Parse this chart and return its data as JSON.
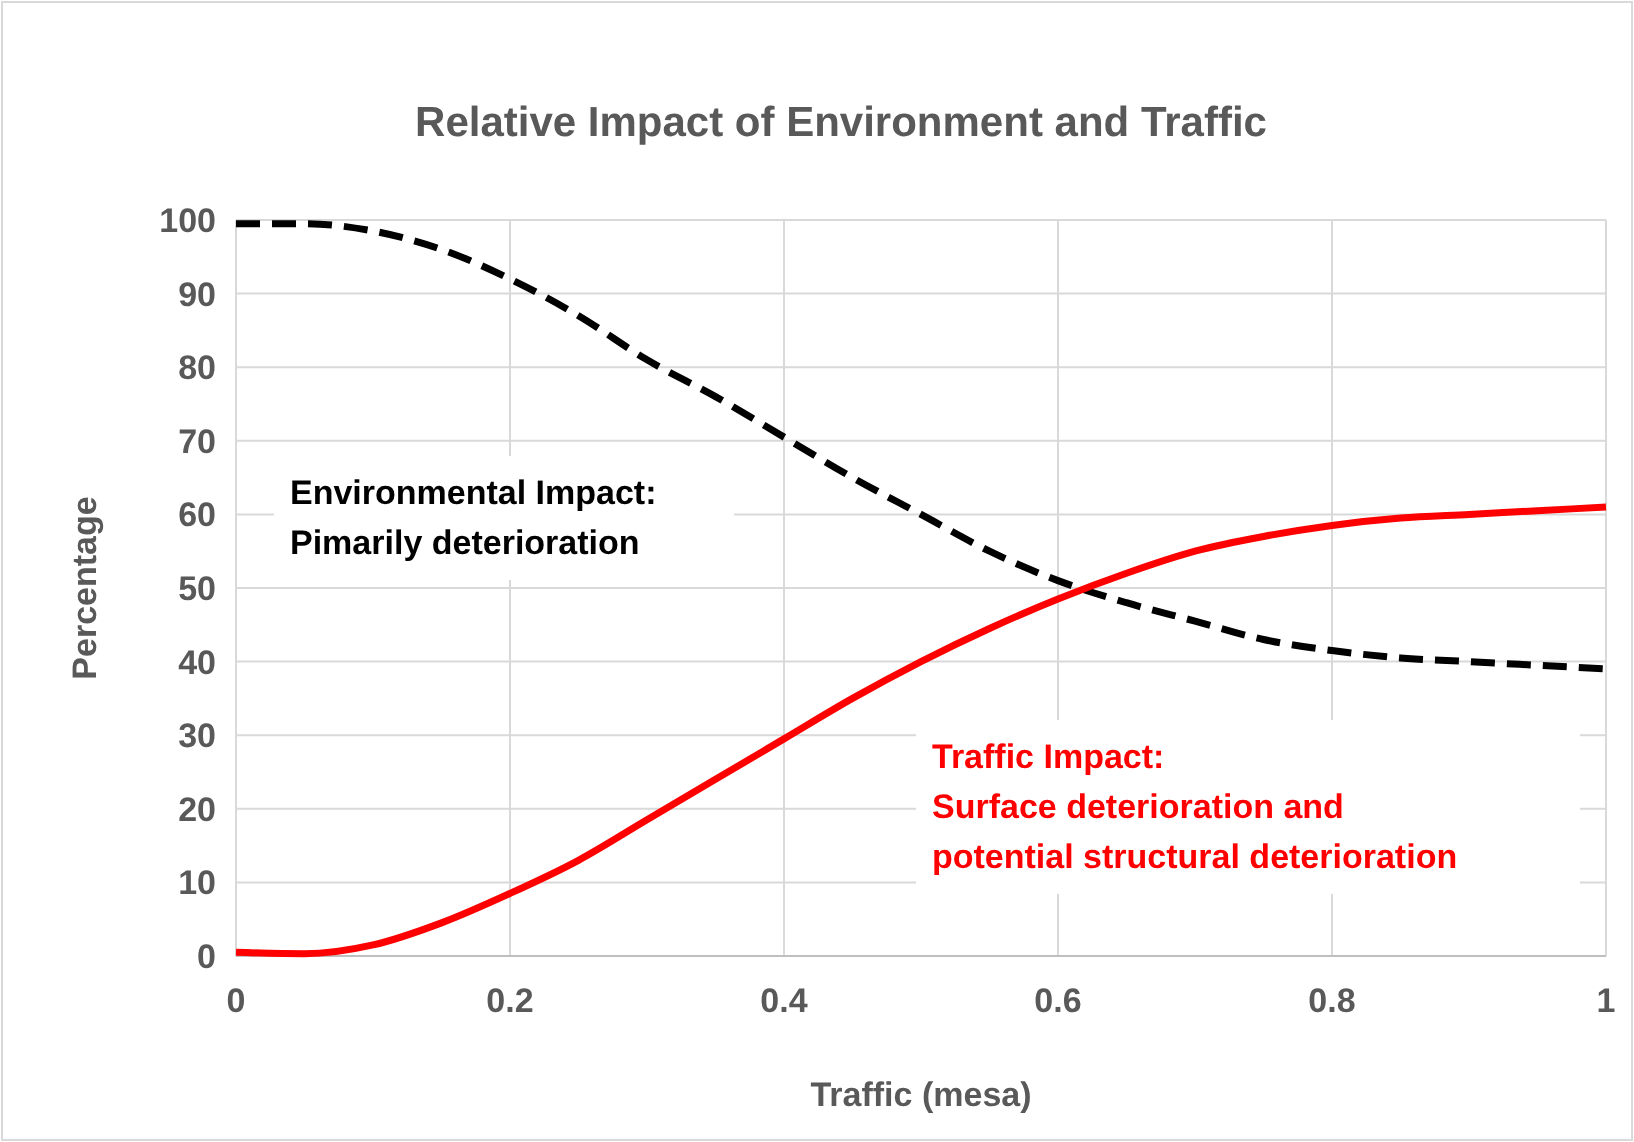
{
  "chart_data": {
    "type": "line",
    "title": "Relative Impact of Environment and Traffic",
    "xlabel": "Traffic (mesa)",
    "ylabel": "Percentage",
    "x": [
      0,
      0.05,
      0.1,
      0.15,
      0.2,
      0.25,
      0.3,
      0.35,
      0.4,
      0.45,
      0.5,
      0.55,
      0.6,
      0.65,
      0.7,
      0.75,
      0.8,
      0.85,
      0.9,
      0.95,
      1
    ],
    "series": [
      {
        "name": "Environmental Impact:\nPimarily deterioration",
        "color": "#000000",
        "line_style": "dashed",
        "values": [
          99.5,
          99.5,
          98.5,
          96,
          92,
          87,
          81,
          76,
          70.5,
          65,
          60,
          55,
          51,
          48,
          45.5,
          43,
          41.5,
          40.5,
          40,
          39.5,
          39
        ]
      },
      {
        "name": "Traffic Impact:\nSurface deterioration and\npotential structural deterioration",
        "color": "#ff0000",
        "line_style": "solid",
        "values": [
          0.5,
          0.3,
          1.5,
          4.5,
          8.5,
          13,
          18.5,
          24,
          29.5,
          35,
          40,
          44.5,
          48.5,
          52,
          55,
          57,
          58.5,
          59.5,
          60,
          60.5,
          61
        ]
      }
    ],
    "xlim": [
      0,
      1
    ],
    "xticks": [
      0,
      0.2,
      0.4,
      0.6,
      0.8,
      1
    ],
    "ylim": [
      0,
      100
    ],
    "yticks": [
      0,
      10,
      20,
      30,
      40,
      50,
      60,
      70,
      80,
      90,
      100
    ],
    "grid": true,
    "marker": "none"
  }
}
